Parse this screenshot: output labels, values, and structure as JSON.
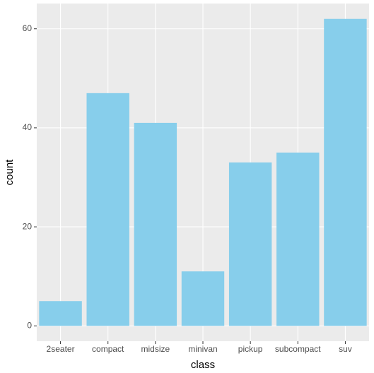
{
  "chart_data": {
    "type": "bar",
    "x_label": "class",
    "y_label": "count",
    "categories": [
      "2seater",
      "compact",
      "midsize",
      "minivan",
      "pickup",
      "subcompact",
      "suv"
    ],
    "values": [
      5,
      47,
      41,
      11,
      33,
      35,
      62
    ],
    "color": "#87ceeb",
    "ylim": [
      -3.1,
      65.1
    ],
    "yticks": [
      0,
      20,
      40,
      60
    ],
    "grid": true
  }
}
